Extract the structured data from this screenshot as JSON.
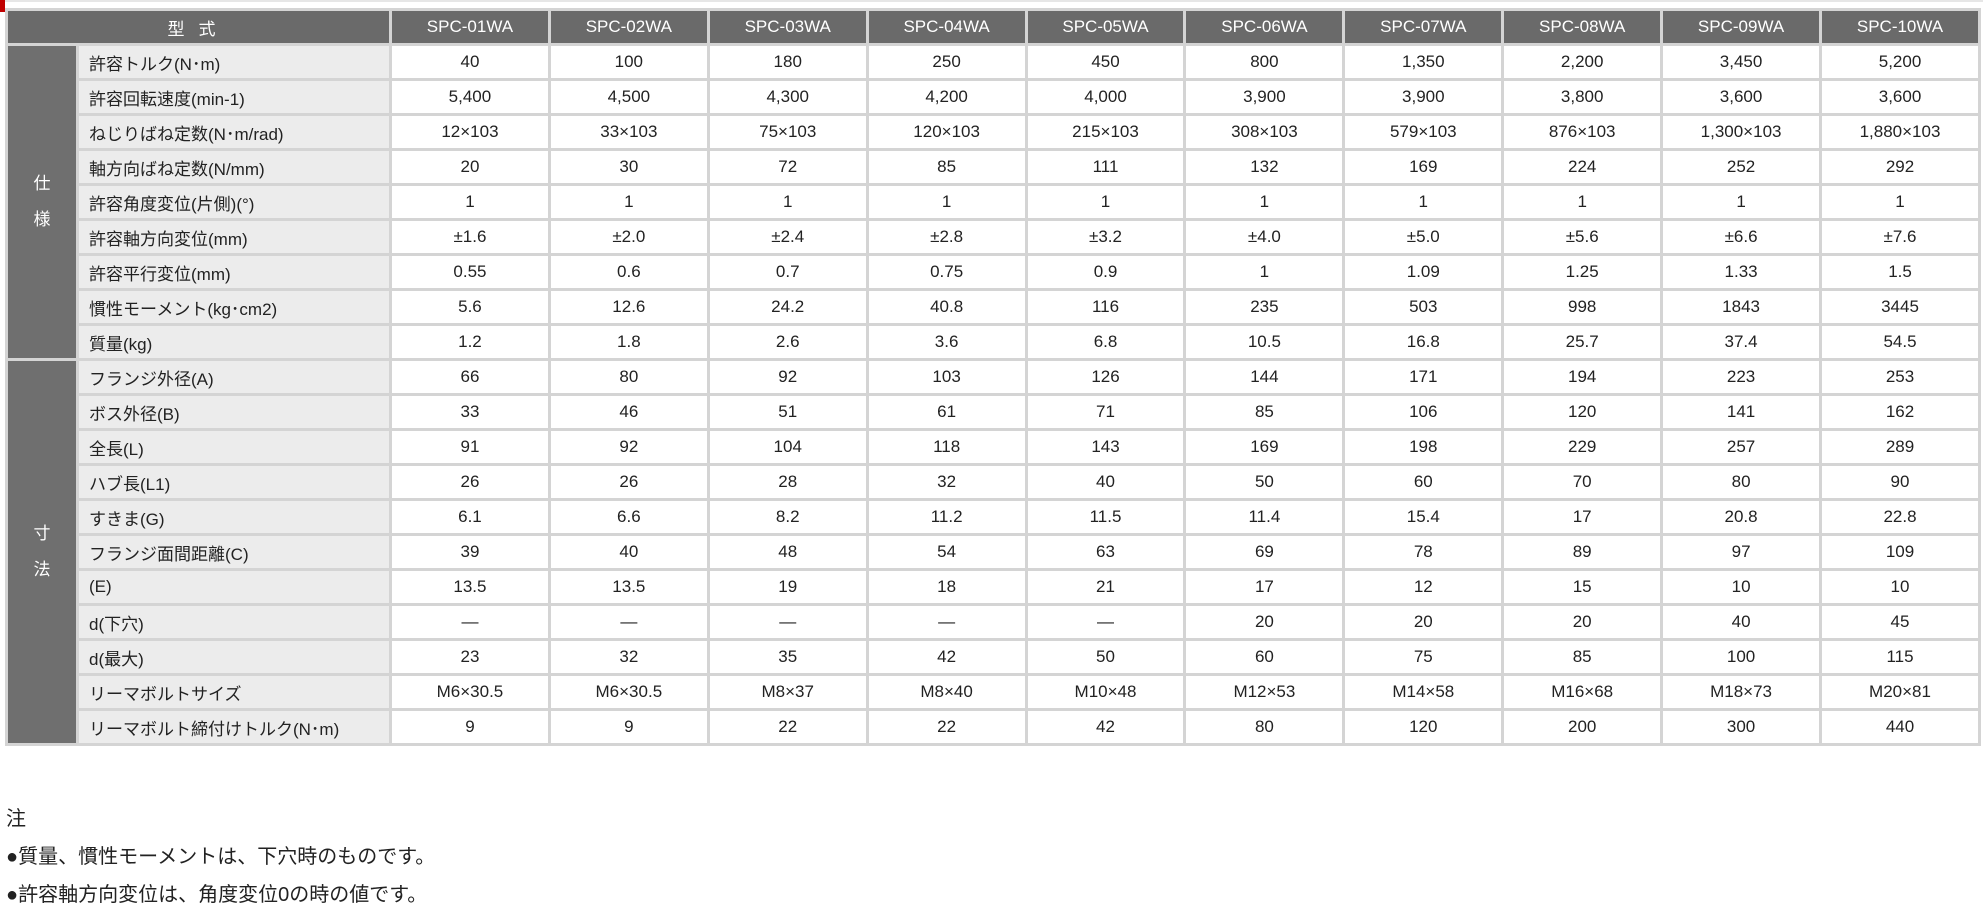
{
  "header": {
    "model_label": "型式",
    "models": [
      "SPC-01WA",
      "SPC-02WA",
      "SPC-03WA",
      "SPC-04WA",
      "SPC-05WA",
      "SPC-06WA",
      "SPC-07WA",
      "SPC-08WA",
      "SPC-09WA",
      "SPC-10WA"
    ]
  },
  "groups": [
    {
      "label": "仕様",
      "rows": [
        {
          "label": "許容トルク(N･m)",
          "values": [
            "40",
            "100",
            "180",
            "250",
            "450",
            "800",
            "1,350",
            "2,200",
            "3,450",
            "5,200"
          ]
        },
        {
          "label": "許容回転速度(min-1)",
          "values": [
            "5,400",
            "4,500",
            "4,300",
            "4,200",
            "4,000",
            "3,900",
            "3,900",
            "3,800",
            "3,600",
            "3,600"
          ]
        },
        {
          "label": "ねじりばね定数(N･m/rad)",
          "values": [
            "12×103",
            "33×103",
            "75×103",
            "120×103",
            "215×103",
            "308×103",
            "579×103",
            "876×103",
            "1,300×103",
            "1,880×103"
          ]
        },
        {
          "label": "軸方向ばね定数(N/mm)",
          "values": [
            "20",
            "30",
            "72",
            "85",
            "111",
            "132",
            "169",
            "224",
            "252",
            "292"
          ]
        },
        {
          "label": "許容角度変位(片側)(°)",
          "values": [
            "1",
            "1",
            "1",
            "1",
            "1",
            "1",
            "1",
            "1",
            "1",
            "1"
          ]
        },
        {
          "label": "許容軸方向変位(mm)",
          "values": [
            "±1.6",
            "±2.0",
            "±2.4",
            "±2.8",
            "±3.2",
            "±4.0",
            "±5.0",
            "±5.6",
            "±6.6",
            "±7.6"
          ]
        },
        {
          "label": "許容平行変位(mm)",
          "values": [
            "0.55",
            "0.6",
            "0.7",
            "0.75",
            "0.9",
            "1",
            "1.09",
            "1.25",
            "1.33",
            "1.5"
          ]
        },
        {
          "label": "慣性モーメント(kg･cm2)",
          "values": [
            "5.6",
            "12.6",
            "24.2",
            "40.8",
            "116",
            "235",
            "503",
            "998",
            "1843",
            "3445"
          ]
        },
        {
          "label": "質量(kg)",
          "values": [
            "1.2",
            "1.8",
            "2.6",
            "3.6",
            "6.8",
            "10.5",
            "16.8",
            "25.7",
            "37.4",
            "54.5"
          ]
        }
      ]
    },
    {
      "label": "寸法",
      "rows": [
        {
          "label": "フランジ外径(A)",
          "values": [
            "66",
            "80",
            "92",
            "103",
            "126",
            "144",
            "171",
            "194",
            "223",
            "253"
          ]
        },
        {
          "label": "ボス外径(B)",
          "values": [
            "33",
            "46",
            "51",
            "61",
            "71",
            "85",
            "106",
            "120",
            "141",
            "162"
          ]
        },
        {
          "label": "全長(L)",
          "values": [
            "91",
            "92",
            "104",
            "118",
            "143",
            "169",
            "198",
            "229",
            "257",
            "289"
          ]
        },
        {
          "label": "ハブ長(L1)",
          "values": [
            "26",
            "26",
            "28",
            "32",
            "40",
            "50",
            "60",
            "70",
            "80",
            "90"
          ]
        },
        {
          "label": "すきま(G)",
          "values": [
            "6.1",
            "6.6",
            "8.2",
            "11.2",
            "11.5",
            "11.4",
            "15.4",
            "17",
            "20.8",
            "22.8"
          ]
        },
        {
          "label": "フランジ面間距離(C)",
          "values": [
            "39",
            "40",
            "48",
            "54",
            "63",
            "69",
            "78",
            "89",
            "97",
            "109"
          ]
        },
        {
          "label": "(E)",
          "values": [
            "13.5",
            "13.5",
            "19",
            "18",
            "21",
            "17",
            "12",
            "15",
            "10",
            "10"
          ]
        },
        {
          "label": "d(下穴)",
          "values": [
            "—",
            "—",
            "—",
            "—",
            "—",
            "20",
            "20",
            "20",
            "40",
            "45"
          ]
        },
        {
          "label": "d(最大)",
          "values": [
            "23",
            "32",
            "35",
            "42",
            "50",
            "60",
            "75",
            "85",
            "100",
            "115"
          ]
        },
        {
          "label": "リーマボルトサイズ",
          "values": [
            "M6×30.5",
            "M6×30.5",
            "M8×37",
            "M8×40",
            "M10×48",
            "M12×53",
            "M14×58",
            "M16×68",
            "M18×73",
            "M20×81"
          ]
        },
        {
          "label": "リーマボルト締付けトルク(N･m)",
          "values": [
            "9",
            "9",
            "22",
            "22",
            "42",
            "80",
            "120",
            "200",
            "300",
            "440"
          ]
        }
      ]
    }
  ],
  "notes": {
    "title": "注",
    "items": [
      "●質量、慣性モーメントは、下穴時のものです。",
      "●許容軸方向変位は、角度変位0の時の値です。"
    ]
  },
  "colors": {
    "header_bg": "#6a6a6a",
    "label_bg": "#ececec",
    "accent": "#c00000"
  }
}
